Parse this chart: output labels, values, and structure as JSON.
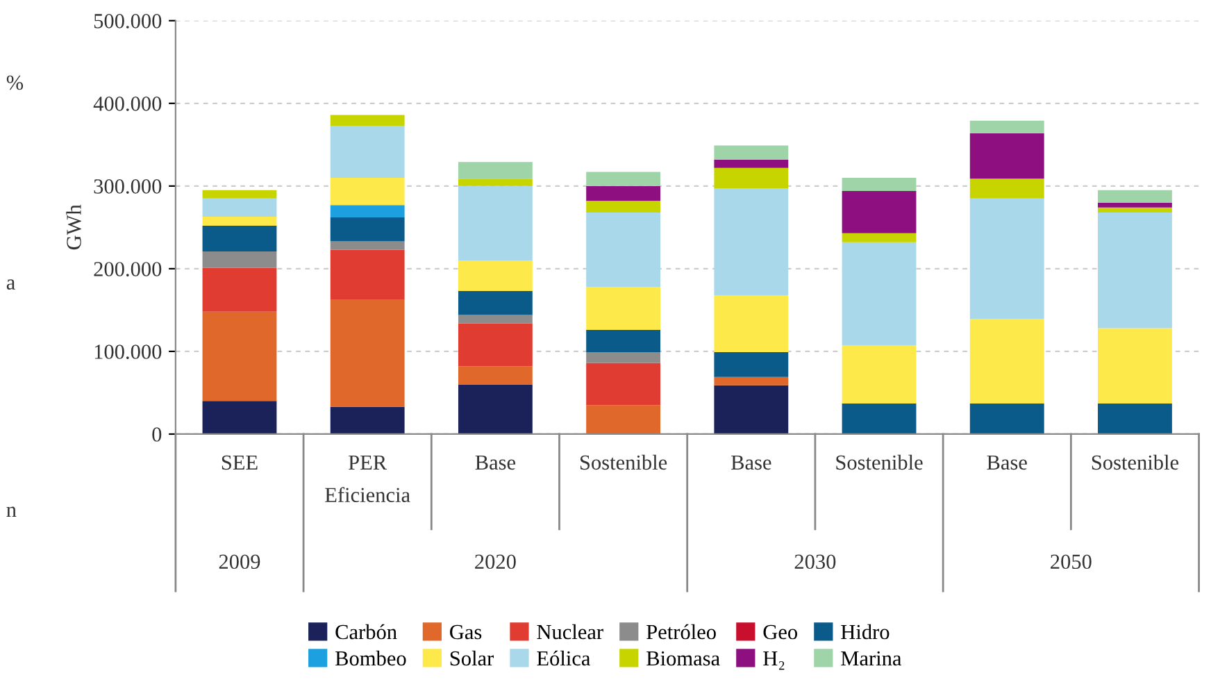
{
  "chart_data": {
    "type": "bar",
    "stacked": true,
    "ylabel": "GWh",
    "categories": [
      "SEE",
      "PER\nEficiencia",
      "Base",
      "Sostenible",
      "Base",
      "Sostenible",
      "Base",
      "Sostenible"
    ],
    "series": [
      {
        "name": "Carbón",
        "color": "#1b2259",
        "values": [
          40000,
          33000,
          60000,
          0,
          59000,
          0,
          0,
          0
        ]
      },
      {
        "name": "Gas",
        "color": "#e0682a",
        "values": [
          108000,
          130000,
          22000,
          35000,
          10000,
          0,
          0,
          0
        ]
      },
      {
        "name": "Nuclear",
        "color": "#e03c31",
        "values": [
          53000,
          60000,
          52000,
          51000,
          0,
          0,
          0,
          0
        ]
      },
      {
        "name": "Petróleo",
        "color": "#8c8c8c",
        "values": [
          20000,
          10000,
          10000,
          13000,
          0,
          0,
          0,
          0
        ]
      },
      {
        "name": "Geo",
        "color": "#c8102e",
        "values": [
          0,
          0,
          0,
          0,
          0,
          0,
          0,
          0
        ]
      },
      {
        "name": "Hidro",
        "color": "#0a5a8a",
        "values": [
          31000,
          29000,
          29000,
          27000,
          30000,
          37000,
          37000,
          37000
        ]
      },
      {
        "name": "Bombeo",
        "color": "#1ca0e0",
        "values": [
          0,
          15000,
          0,
          0,
          0,
          0,
          0,
          0
        ]
      },
      {
        "name": "Solar",
        "color": "#fde94a",
        "values": [
          11000,
          33000,
          37000,
          52000,
          69000,
          70000,
          102000,
          91000
        ]
      },
      {
        "name": "Eólica",
        "color": "#a8d8ea",
        "values": [
          22000,
          63000,
          90000,
          90000,
          129000,
          125000,
          146000,
          140000
        ]
      },
      {
        "name": "Biomasa",
        "color": "#c8d400",
        "values": [
          10000,
          13000,
          9000,
          14000,
          25000,
          11000,
          24000,
          6000
        ]
      },
      {
        "name": "H₂",
        "color": "#8e1080",
        "values": [
          0,
          0,
          0,
          18000,
          10000,
          51000,
          55000,
          6000
        ]
      },
      {
        "name": "Marina",
        "color": "#9fd4a8",
        "values": [
          0,
          0,
          20000,
          17000,
          17000,
          16000,
          15000,
          15000
        ]
      }
    ],
    "ylim": [
      0,
      500000
    ],
    "yticks": [
      0,
      {
        "value": 100000,
        "label": "100.000"
      },
      {
        "value": 200000,
        "label": "200.000"
      },
      {
        "value": 300000,
        "label": "300.000"
      },
      {
        "value": 400000,
        "label": "400.000"
      },
      {
        "value": 500000,
        "label": "500.000"
      }
    ],
    "grid": "y",
    "legend": "bottom",
    "annotations": [
      "2009",
      "2020",
      "2030",
      "2050",
      "%",
      "a",
      "n"
    ]
  }
}
